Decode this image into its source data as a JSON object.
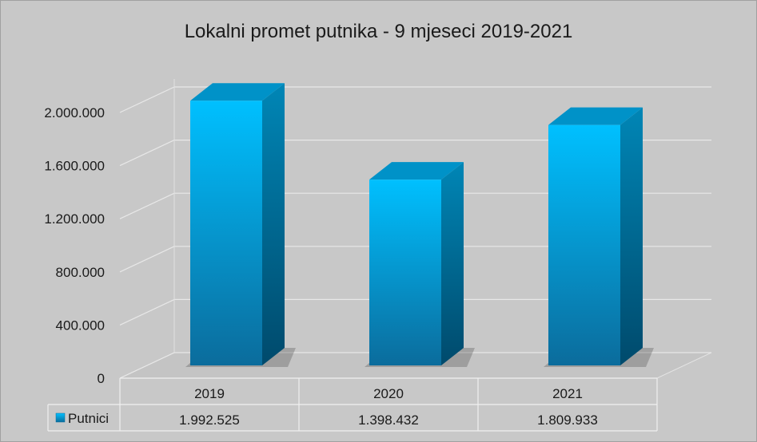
{
  "chart_data": {
    "type": "bar",
    "title": "Lokalni promet putnika - 9 mjeseci 2019-2021",
    "categories": [
      "2019",
      "2020",
      "2021"
    ],
    "series": [
      {
        "name": "Putnici",
        "values": [
          1992525,
          1398432,
          1809933
        ],
        "value_labels": [
          "1.992.525",
          "1.398.432",
          "1.809.933"
        ]
      }
    ],
    "y_ticks": [
      0,
      400000,
      800000,
      1200000,
      1600000,
      2000000
    ],
    "y_tick_labels": [
      "0",
      "400.000",
      "800.000",
      "1.200.000",
      "1.600.000",
      "2.000.000"
    ],
    "ylim": [
      0,
      2000000
    ],
    "grid": true,
    "legend": "data-table",
    "style": "3d-column",
    "colors": {
      "background": "#c8c8c8",
      "bar_front_top": "#00bfff",
      "bar_front_bottom": "#0a6fa0",
      "bar_side": "#005f86",
      "bar_top": "#0090c4",
      "gridline": "#e8e8e8"
    }
  }
}
